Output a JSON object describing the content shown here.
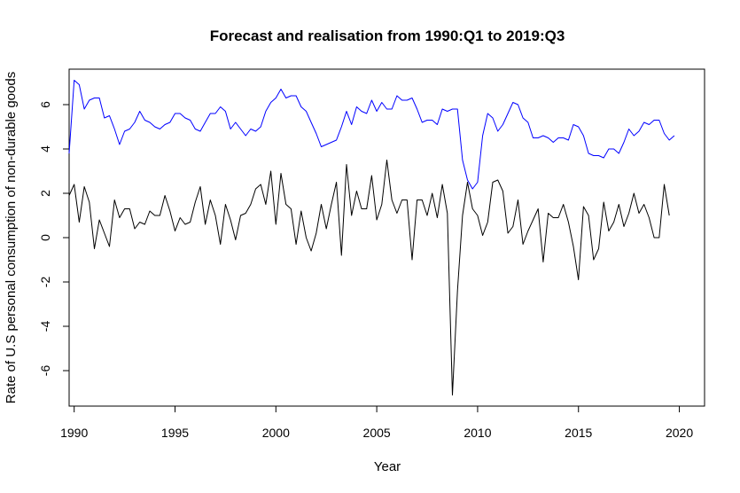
{
  "chart_data": {
    "type": "line",
    "title": "Forecast and realisation from 1990:Q1 to 2019:Q3",
    "xlabel": "Year",
    "ylabel": "Rate of U.S personal consumption of non-durable goods",
    "xlim": [
      1989.75,
      2021.25
    ],
    "ylim": [
      -7.6,
      7.6
    ],
    "x_ticks": [
      1990,
      1995,
      2000,
      2005,
      2010,
      2015,
      2020
    ],
    "y_ticks": [
      -6,
      -4,
      -2,
      0,
      2,
      4,
      6
    ],
    "grid": false,
    "legend": "none",
    "x_start": 1989.75,
    "x_step": 0.25,
    "series": [
      {
        "color": "#0000ff",
        "values": [
          3.8,
          7.1,
          6.9,
          5.8,
          6.2,
          6.3,
          6.3,
          5.4,
          5.5,
          4.9,
          4.2,
          4.8,
          4.9,
          5.2,
          5.7,
          5.3,
          5.2,
          5.0,
          4.9,
          5.1,
          5.2,
          5.6,
          5.6,
          5.4,
          5.3,
          4.9,
          4.8,
          5.2,
          5.6,
          5.6,
          5.9,
          5.7,
          4.9,
          5.2,
          4.9,
          4.6,
          4.9,
          4.8,
          5.0,
          5.7,
          6.1,
          6.3,
          6.7,
          6.3,
          6.4,
          6.4,
          5.9,
          5.7,
          5.2,
          4.7,
          4.1,
          4.2,
          4.3,
          4.4,
          5.0,
          5.7,
          5.1,
          5.9,
          5.7,
          5.6,
          6.2,
          5.7,
          6.1,
          5.8,
          5.8,
          6.4,
          6.2,
          6.2,
          6.3,
          5.8,
          5.2,
          5.3,
          5.3,
          5.1,
          5.8,
          5.7,
          5.8,
          5.8,
          3.5,
          2.6,
          2.2,
          2.5,
          4.6,
          5.6,
          5.4,
          4.8,
          5.1,
          5.6,
          6.1,
          6.0,
          5.4,
          5.2,
          4.5,
          4.5,
          4.6,
          4.5,
          4.3,
          4.5,
          4.5,
          4.4,
          5.1,
          5.0,
          4.6,
          3.8,
          3.7,
          3.7,
          3.6,
          4.0,
          4.0,
          3.8,
          4.3,
          4.9,
          4.6,
          4.8,
          5.2,
          5.1,
          5.3,
          5.3,
          4.7,
          4.4,
          4.6
        ]
      },
      {
        "color": "#000000",
        "values": [
          1.9,
          2.4,
          0.7,
          2.3,
          1.6,
          -0.5,
          0.8,
          0.2,
          -0.4,
          1.7,
          0.9,
          1.3,
          1.3,
          0.4,
          0.7,
          0.6,
          1.2,
          1.0,
          1.0,
          1.9,
          1.2,
          0.3,
          0.9,
          0.6,
          0.7,
          1.6,
          2.3,
          0.6,
          1.7,
          1.0,
          -0.3,
          1.5,
          0.8,
          -0.1,
          1.0,
          1.1,
          1.5,
          2.2,
          2.4,
          1.5,
          3.0,
          0.6,
          2.9,
          1.5,
          1.3,
          -0.3,
          1.2,
          0.0,
          -0.6,
          0.2,
          1.5,
          0.4,
          1.5,
          2.5,
          -0.8,
          3.3,
          1.0,
          2.1,
          1.3,
          1.3,
          2.8,
          0.8,
          1.5,
          3.5,
          1.7,
          1.1,
          1.7,
          1.7,
          -1.0,
          1.7,
          1.7,
          1.0,
          2.0,
          0.9,
          2.4,
          1.1,
          -7.1,
          -2.4,
          1.0,
          2.5,
          1.3,
          1.0,
          0.1,
          0.7,
          2.5,
          2.6,
          2.1,
          0.2,
          0.5,
          1.7,
          -0.3,
          0.3,
          0.8,
          1.3,
          -1.1,
          1.1,
          0.9,
          0.9,
          1.5,
          0.7,
          -0.4,
          -1.9,
          1.4,
          1.0,
          -1.0,
          -0.5,
          1.6,
          0.3,
          0.7,
          1.5,
          0.5,
          1.1,
          2.0,
          1.1,
          1.5,
          0.9,
          0.0,
          0.0,
          2.4,
          1.0
        ]
      }
    ]
  }
}
